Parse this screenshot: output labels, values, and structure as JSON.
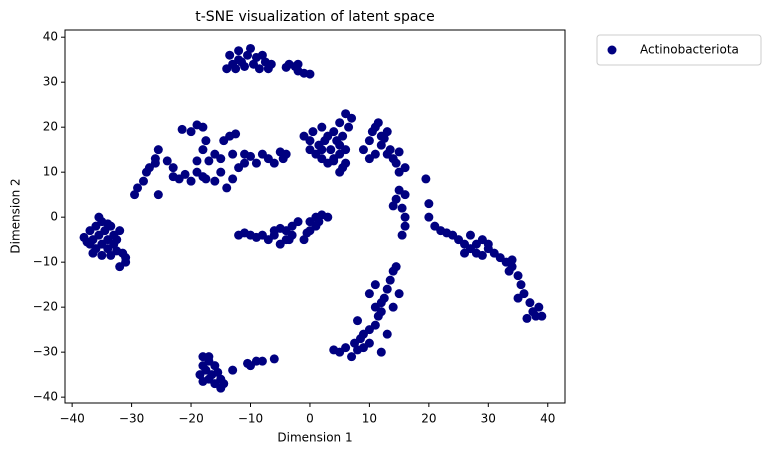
{
  "chart_data": {
    "type": "scatter",
    "title": "t-SNE visualization of latent space",
    "xlabel": "Dimension 1",
    "ylabel": "Dimension 2",
    "xlim": [
      -41.2,
      42.9
    ],
    "ylim": [
      -41.3,
      41.6
    ],
    "xticks": [
      {
        "value": -40,
        "label": "−40"
      },
      {
        "value": -30,
        "label": "−30"
      },
      {
        "value": -20,
        "label": "−20"
      },
      {
        "value": -10,
        "label": "−10"
      },
      0,
      10,
      20,
      30,
      40
    ],
    "yticks": [
      {
        "value": -40,
        "label": "−40"
      },
      {
        "value": -30,
        "label": "−30"
      },
      {
        "value": -20,
        "label": "−20"
      },
      {
        "value": -10,
        "label": "−10"
      },
      0,
      10,
      20,
      30,
      40
    ],
    "grid": false,
    "legend": "outside-upper-right",
    "series": [
      {
        "name": "Actinobacteriota",
        "color": "#000080",
        "x": [
          -38,
          -37,
          -36.5,
          -36,
          -35.5,
          -35,
          -35,
          -34.5,
          -34,
          -34,
          -33.5,
          -33,
          -33,
          -36,
          -35,
          -37,
          -32.5,
          -32,
          -31.5,
          -31,
          -32,
          -31,
          -35.5,
          -36.5,
          -33.5,
          -34,
          -37.5,
          -32.5,
          -18,
          -17,
          -18,
          -17.5,
          -16.5,
          -17,
          -16,
          -15,
          -14.5,
          -18.5,
          -16,
          -15.5,
          -17,
          -13,
          -15,
          -10,
          -9,
          -8,
          -10.5,
          -6,
          -18,
          -14,
          -13,
          -13.5,
          -12,
          -12,
          -11,
          -10.5,
          -10,
          -9.5,
          -9,
          -8.5,
          -8,
          -7.5,
          -7,
          -11.5,
          -12.5,
          -6.5,
          -3.5,
          -2.5,
          -2,
          -1,
          0,
          -4,
          -2,
          -29.5,
          -29,
          -28,
          -27.5,
          -27,
          -26,
          -25.5,
          -26,
          -25.5,
          -24,
          -23,
          -23,
          -22,
          -21,
          -20,
          -19,
          -18,
          -17.5,
          -16,
          -14,
          -15,
          -20,
          -19,
          -18,
          -17.5,
          -18,
          -17,
          -16,
          -15,
          -13.5,
          -14.5,
          -12.5,
          -13,
          -11,
          -10,
          -9,
          -8,
          -7,
          -6,
          -5,
          -4.5,
          -4,
          -11,
          -19,
          -21.5,
          -13,
          -12,
          -12,
          -11,
          -10,
          -9,
          -8,
          -7,
          -6,
          -5,
          -4,
          -3.5,
          -3,
          -3,
          -2,
          -5,
          -1,
          0,
          0,
          1,
          1,
          2,
          3,
          -0.5,
          1.5,
          -6,
          -4,
          -1,
          0,
          0,
          1,
          0.5,
          1.5,
          2,
          2,
          2.5,
          3,
          3.5,
          4,
          4,
          4.5,
          5,
          5.5,
          5,
          5,
          5.5,
          6,
          6,
          6.5,
          7,
          6,
          2,
          3,
          4,
          5,
          9,
          10,
          10.5,
          11,
          11.5,
          12,
          12,
          12.5,
          13,
          13,
          13.5,
          14,
          14.5,
          15,
          15,
          14.5,
          15.5,
          14,
          16,
          16,
          15.5,
          11,
          10,
          16,
          15,
          16,
          19.5,
          20,
          20,
          21,
          22,
          23,
          24,
          25,
          26,
          26,
          27,
          28,
          28,
          29,
          30,
          31,
          32,
          33,
          33.5,
          34,
          35,
          35.5,
          36,
          35,
          37,
          37.5,
          38,
          38.5,
          36.5,
          27,
          30,
          29,
          34,
          39,
          4,
          5,
          6,
          7,
          7.5,
          8,
          8.5,
          9,
          10,
          10,
          11,
          11.5,
          12,
          11,
          12.5,
          13,
          13.5,
          14,
          14.5,
          10,
          11,
          12,
          9,
          13,
          8,
          15,
          14,
          12
        ],
        "y": [
          -4.5,
          -3,
          -5,
          -2,
          -4,
          -6,
          -1,
          -3,
          -5,
          -7,
          -2,
          -4,
          -6,
          -7,
          -8.5,
          -6,
          -5,
          -3,
          -8,
          -10,
          -11,
          -9,
          0,
          -8,
          -8.5,
          -1.5,
          -5.5,
          -7.5,
          -31,
          -32,
          -33,
          -34,
          -35,
          -36,
          -37,
          -36,
          -37,
          -35,
          -33,
          -34.5,
          -31,
          -34,
          -38,
          -33,
          -32,
          -32,
          -32.5,
          -31.5,
          -36.5,
          33,
          34,
          36,
          35,
          37,
          33.5,
          36,
          37.5,
          34,
          35.5,
          33,
          36,
          34.5,
          33,
          34.5,
          33,
          34,
          34,
          33.5,
          32.5,
          32,
          31.8,
          33.3,
          34,
          5,
          6.5,
          8,
          10,
          11,
          12,
          15,
          13,
          5,
          12.5,
          11,
          9,
          8.5,
          9.5,
          8,
          10,
          9,
          8.5,
          8,
          6.5,
          10,
          19,
          20.5,
          20,
          17,
          15,
          12.5,
          14,
          13,
          18,
          17,
          18.5,
          14,
          12,
          13.5,
          12,
          14,
          13,
          12,
          14.5,
          13,
          14,
          14,
          12.5,
          19.5,
          8.5,
          11,
          -4,
          -3.5,
          -4,
          -4.5,
          -4,
          -5,
          -4,
          -6,
          -3,
          -5,
          -2,
          -4,
          -1,
          -2.5,
          -5,
          -3,
          -1,
          0,
          -2,
          0.5,
          0,
          -3.5,
          -1,
          -3,
          -5,
          18,
          17,
          15,
          14,
          19,
          16,
          13,
          15,
          17,
          12,
          15,
          13,
          19,
          17,
          21,
          18,
          14,
          10,
          11,
          12,
          23,
          20,
          22,
          15,
          20,
          18,
          12.5,
          16,
          15,
          17,
          19,
          20,
          21,
          18,
          16,
          17.5,
          19,
          14,
          15,
          13,
          12,
          10,
          6,
          4,
          2,
          2.5,
          0,
          -2,
          -4,
          14,
          13,
          11,
          14.5,
          5,
          8.5,
          3,
          0,
          -2,
          -3,
          -3.5,
          -4,
          -5,
          -6,
          -8,
          -7,
          -6,
          -8,
          -5,
          -7,
          -8,
          -9,
          -10,
          -12,
          -11,
          -13,
          -15,
          -17,
          -18,
          -19,
          -21,
          -22,
          -20,
          -22.5,
          -4,
          -6,
          -8.5,
          -9.5,
          -22,
          -29.5,
          -30,
          -29,
          -31,
          -28,
          -29.5,
          -27,
          -26,
          -25,
          -28,
          -24,
          -22,
          -21,
          -20,
          -18,
          -16,
          -14,
          -12,
          -11,
          -17,
          -15,
          -19,
          -29,
          -26,
          -23,
          -17,
          -20,
          -30
        ]
      }
    ]
  }
}
